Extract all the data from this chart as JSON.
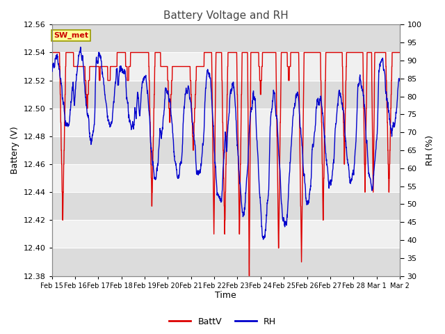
{
  "title": "Battery Voltage and RH",
  "xlabel": "Time",
  "ylabel_left": "Battery (V)",
  "ylabel_right": "RH (%)",
  "ylim_left": [
    12.38,
    12.56
  ],
  "ylim_right": [
    30,
    100
  ],
  "yticks_left": [
    12.38,
    12.4,
    12.42,
    12.44,
    12.46,
    12.48,
    12.5,
    12.52,
    12.54,
    12.56
  ],
  "yticks_right": [
    30,
    35,
    40,
    45,
    50,
    55,
    60,
    65,
    70,
    75,
    80,
    85,
    90,
    95,
    100
  ],
  "bg_color": "#ffffff",
  "band_colors": [
    "#dcdcdc",
    "#f0f0f0"
  ],
  "grid_color": "#ffffff",
  "batt_color": "#dd0000",
  "rh_color": "#0000cc",
  "legend_labels": [
    "BattV",
    "RH"
  ],
  "annotation_text": "SW_met",
  "annotation_bg": "#ffff99",
  "annotation_border": "#999900",
  "annotation_text_color": "#cc0000",
  "title_color": "#444444",
  "tick_label_color": "#444444",
  "date_labels": [
    "Feb 15",
    "Feb 16",
    "Feb 17",
    "Feb 18",
    "Feb 19",
    "Feb 20",
    "Feb 21",
    "Feb 22",
    "Feb 23",
    "Feb 24",
    "Feb 25",
    "Feb 26",
    "Feb 27",
    "Feb 28",
    "Mar 1",
    "Mar 2"
  ],
  "n_points": 2000,
  "figsize": [
    6.4,
    4.8
  ],
  "dpi": 100
}
